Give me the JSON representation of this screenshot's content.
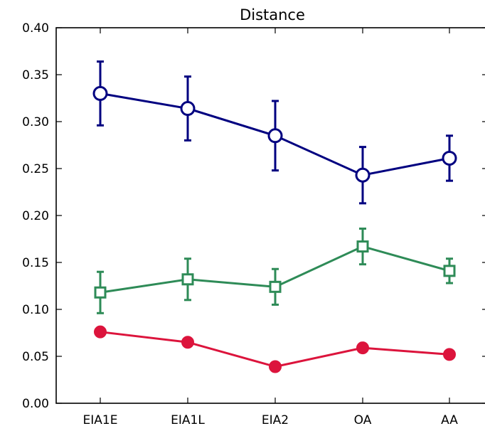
{
  "chart_data": {
    "type": "line",
    "title": "Distance",
    "xlabel": "",
    "ylabel": "",
    "categories": [
      "EIA1E",
      "EIA1L",
      "EIA2",
      "OA",
      "AA"
    ],
    "ylim": [
      0.0,
      0.4
    ],
    "yticks": [
      0.0,
      0.05,
      0.1,
      0.15,
      0.2,
      0.25,
      0.3,
      0.35,
      0.4
    ],
    "ytick_labels": [
      "0.00",
      "0.05",
      "0.10",
      "0.15",
      "0.20",
      "0.25",
      "0.30",
      "0.35",
      "0.40"
    ],
    "grid": false,
    "series": [
      {
        "color": "#000080",
        "marker": "circle-open",
        "values": [
          0.33,
          0.314,
          0.285,
          0.243,
          0.261
        ],
        "error_low": [
          0.296,
          0.28,
          0.248,
          0.213,
          0.237
        ],
        "error_high": [
          0.364,
          0.348,
          0.322,
          0.273,
          0.285
        ]
      },
      {
        "color": "#2e8b57",
        "marker": "square-open",
        "values": [
          0.118,
          0.132,
          0.124,
          0.167,
          0.141
        ],
        "error_low": [
          0.096,
          0.11,
          0.105,
          0.148,
          0.128
        ],
        "error_high": [
          0.14,
          0.154,
          0.143,
          0.186,
          0.154
        ]
      },
      {
        "color": "#dc143c",
        "marker": "circle-filled",
        "values": [
          0.076,
          0.065,
          0.039,
          0.059,
          0.052
        ]
      }
    ]
  }
}
